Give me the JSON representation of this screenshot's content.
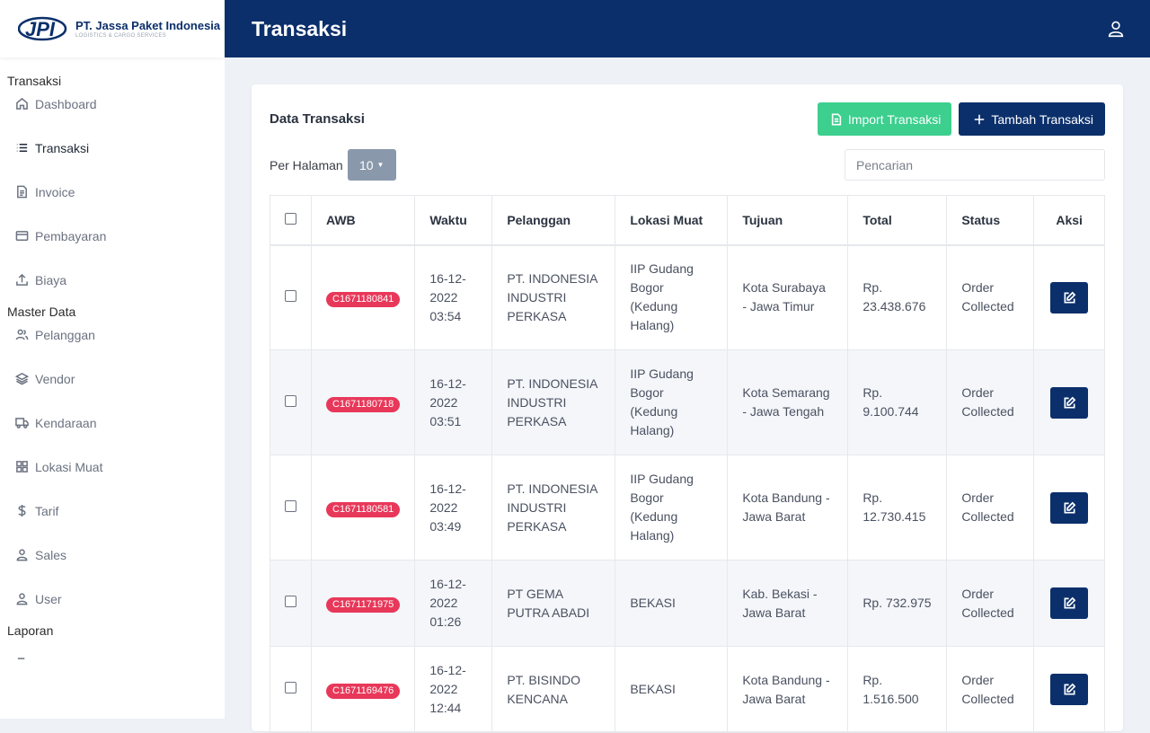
{
  "brand": {
    "name": "PT. Jassa Paket Indonesia",
    "tagline": "LOGISTICS & CARGO SERVICES",
    "logo_text": "JPI"
  },
  "topbar": {
    "title": "Transaksi"
  },
  "sidebar": {
    "sections": [
      {
        "title": "Transaksi",
        "items": [
          {
            "label": "Dashboard",
            "icon": "home-icon"
          },
          {
            "label": "Transaksi",
            "icon": "list-icon",
            "active": true
          },
          {
            "label": "Invoice",
            "icon": "document-icon"
          },
          {
            "label": "Pembayaran",
            "icon": "card-icon"
          },
          {
            "label": "Biaya",
            "icon": "upload-icon"
          }
        ]
      },
      {
        "title": "Master Data",
        "items": [
          {
            "label": "Pelanggan",
            "icon": "users-icon"
          },
          {
            "label": "Vendor",
            "icon": "layers-icon"
          },
          {
            "label": "Kendaraan",
            "icon": "truck-icon"
          },
          {
            "label": "Lokasi Muat",
            "icon": "grid-icon"
          },
          {
            "label": "Tarif",
            "icon": "dollar-icon"
          },
          {
            "label": "Sales",
            "icon": "user-icon"
          },
          {
            "label": "User",
            "icon": "user-icon"
          }
        ]
      },
      {
        "title": "Laporan",
        "items": []
      }
    ]
  },
  "card": {
    "title": "Data Transaksi",
    "import_label": "Import Transaksi",
    "add_label": "Tambah Transaksi",
    "per_page_label": "Per Halaman",
    "per_page_value": "10",
    "search_placeholder": "Pencarian"
  },
  "table": {
    "headers": [
      "AWB",
      "Waktu",
      "Pelanggan",
      "Lokasi Muat",
      "Tujuan",
      "Total",
      "Status",
      "Aksi"
    ],
    "rows": [
      {
        "awb": "C1671180841",
        "waktu": "16-12-2022 03:54",
        "pelanggan": "PT. INDONESIA INDUSTRI PERKASA",
        "lokasi": "IIP Gudang Bogor (Kedung Halang)",
        "tujuan": "Kota Surabaya - Jawa Timur",
        "total": "Rp. 23.438.676",
        "status": "Order Collected"
      },
      {
        "awb": "C1671180718",
        "waktu": "16-12-2022 03:51",
        "pelanggan": "PT. INDONESIA INDUSTRI PERKASA",
        "lokasi": "IIP Gudang Bogor (Kedung Halang)",
        "tujuan": "Kota Semarang - Jawa Tengah",
        "total": "Rp. 9.100.744",
        "status": "Order Collected"
      },
      {
        "awb": "C1671180581",
        "waktu": "16-12-2022 03:49",
        "pelanggan": "PT. INDONESIA INDUSTRI PERKASA",
        "lokasi": "IIP Gudang Bogor (Kedung Halang)",
        "tujuan": "Kota Bandung - Jawa Barat",
        "total": "Rp. 12.730.415",
        "status": "Order Collected"
      },
      {
        "awb": "C1671171975",
        "waktu": "16-12-2022 01:26",
        "pelanggan": "PT GEMA PUTRA ABADI",
        "lokasi": "BEKASI",
        "tujuan": "Kab. Bekasi - Jawa Barat",
        "total": "Rp. 732.975",
        "status": "Order Collected"
      },
      {
        "awb": "C1671169476",
        "waktu": "16-12-2022 12:44",
        "pelanggan": "PT. BISINDO KENCANA",
        "lokasi": "BEKASI",
        "tujuan": "Kota Bandung - Jawa Barat",
        "total": "Rp. 1.516.500",
        "status": "Order Collected"
      }
    ]
  },
  "colors": {
    "primary": "#0b2f6b",
    "success": "#3ccf8e",
    "badge": "#e8385a",
    "per_page_bg": "#8a98ab"
  }
}
